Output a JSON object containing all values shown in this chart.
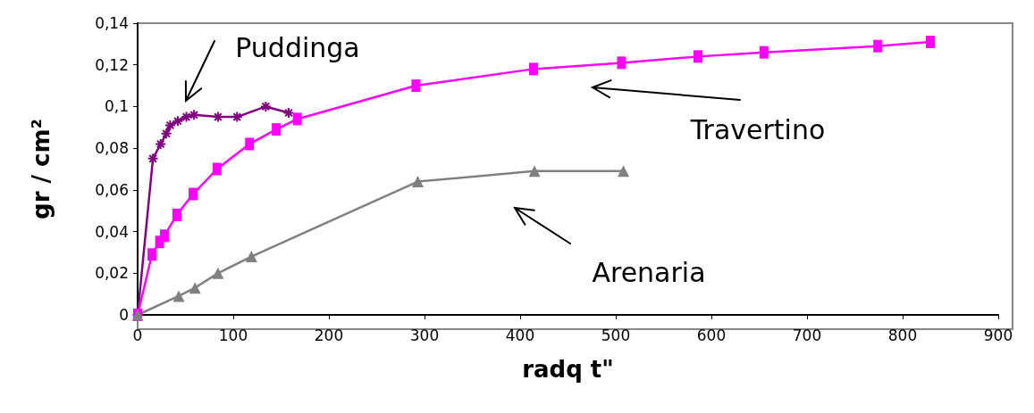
{
  "chart_data": {
    "type": "line",
    "xlabel": "radq t\"",
    "ylabel": "gr / cm²",
    "xlim": [
      0,
      900
    ],
    "xticks": [
      0,
      100,
      200,
      300,
      400,
      500,
      600,
      700,
      800,
      900
    ],
    "ylim": [
      0,
      0.14
    ],
    "yticks": [
      0,
      {
        "value": 0.02,
        "label": "0,02"
      },
      {
        "value": 0.04,
        "label": "0,04"
      },
      {
        "value": 0.06,
        "label": "0,06"
      },
      {
        "value": 0.08,
        "label": "0,08"
      },
      {
        "value": 0.1,
        "label": "0,1"
      },
      {
        "value": 0.12,
        "label": "0,12"
      },
      {
        "value": 0.14,
        "label": "0,14"
      }
    ],
    "grid": false,
    "legend": false,
    "line_style": "solid",
    "series": [
      {
        "name": "Puddinga",
        "color": "#800080",
        "marker": "cross",
        "x": [
          0,
          16,
          24,
          30,
          34,
          42,
          51,
          59,
          84,
          104,
          134,
          158
        ],
        "values": [
          0,
          0.075,
          0.082,
          0.087,
          0.091,
          0.093,
          0.095,
          0.096,
          0.095,
          0.095,
          0.1,
          0.097
        ]
      },
      {
        "name": "Travertino",
        "color": "#ff00ff",
        "marker": "square",
        "x": [
          0,
          15,
          23,
          28,
          41,
          58,
          83,
          117,
          145,
          167,
          291,
          414,
          506,
          586,
          655,
          774,
          829
        ],
        "values": [
          0,
          0.029,
          0.035,
          0.038,
          0.048,
          0.058,
          0.07,
          0.082,
          0.089,
          0.094,
          0.11,
          0.118,
          0.121,
          0.124,
          0.126,
          0.129,
          0.131
        ]
      },
      {
        "name": "Arenaria",
        "color": "#808080",
        "marker": "triangle",
        "x": [
          0,
          43,
          60,
          84,
          119,
          293,
          415,
          508
        ],
        "values": [
          0,
          0.009,
          0.013,
          0.02,
          0.028,
          0.064,
          0.069,
          0.069
        ]
      }
    ]
  }
}
